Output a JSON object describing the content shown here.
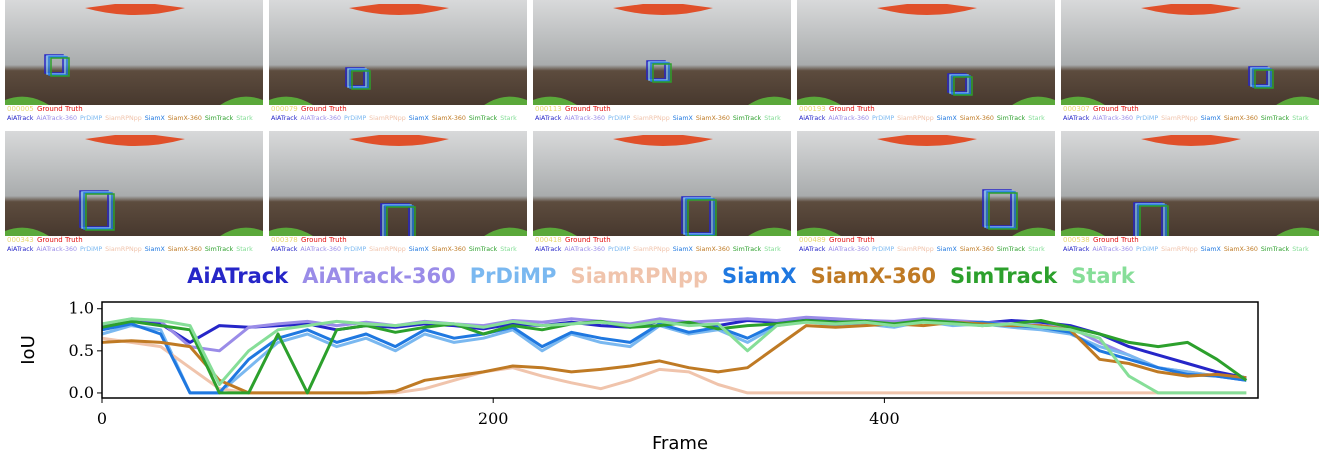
{
  "frames": [
    {
      "id": "000005"
    },
    {
      "id": "000079"
    },
    {
      "id": "000113"
    },
    {
      "id": "000193"
    },
    {
      "id": "000307"
    },
    {
      "id": "000343"
    },
    {
      "id": "000378"
    },
    {
      "id": "000418"
    },
    {
      "id": "000489"
    },
    {
      "id": "000538"
    }
  ],
  "ground_truth_label": "Ground Truth",
  "chart_data": {
    "type": "line",
    "x_label": "Frame",
    "y_label": "IoU",
    "x": [
      0,
      15,
      30,
      45,
      60,
      75,
      90,
      105,
      120,
      135,
      150,
      165,
      180,
      195,
      210,
      225,
      240,
      255,
      270,
      285,
      300,
      315,
      330,
      345,
      360,
      375,
      390,
      405,
      420,
      435,
      450,
      465,
      480,
      495,
      510,
      525,
      540,
      555,
      570,
      585
    ],
    "xlim": [
      0,
      591
    ],
    "ylim": [
      -0.06,
      1.08
    ],
    "xticks": [
      0,
      200,
      400
    ],
    "yticks": [
      {
        "value": 0,
        "label": "0.0"
      },
      {
        "value": 0.5,
        "label": "0.5"
      },
      {
        "value": 1,
        "label": "1.0"
      }
    ],
    "series": [
      {
        "name": "AiATrack",
        "color": "#2626c8",
        "values": [
          0.75,
          0.85,
          0.82,
          0.6,
          0.8,
          0.78,
          0.8,
          0.82,
          0.75,
          0.8,
          0.78,
          0.82,
          0.8,
          0.76,
          0.82,
          0.8,
          0.84,
          0.8,
          0.78,
          0.85,
          0.82,
          0.8,
          0.86,
          0.84,
          0.88,
          0.85,
          0.86,
          0.84,
          0.87,
          0.85,
          0.83,
          0.86,
          0.84,
          0.8,
          0.7,
          0.55,
          0.45,
          0.35,
          0.25,
          0.18
        ]
      },
      {
        "name": "AiATrack-360",
        "color": "#9a8ce8",
        "values": [
          0.8,
          0.88,
          0.85,
          0.55,
          0.5,
          0.78,
          0.82,
          0.85,
          0.8,
          0.84,
          0.8,
          0.85,
          0.82,
          0.8,
          0.86,
          0.84,
          0.88,
          0.85,
          0.82,
          0.88,
          0.84,
          0.86,
          0.88,
          0.86,
          0.9,
          0.88,
          0.86,
          0.85,
          0.88,
          0.86,
          0.84,
          0.82,
          0.8,
          0.78,
          0.6,
          0.45,
          0.3,
          0.25,
          0.2,
          0.15
        ]
      },
      {
        "name": "PrDiMP",
        "color": "#7ab8f0",
        "values": [
          0.7,
          0.8,
          0.75,
          0.0,
          0.0,
          0.3,
          0.6,
          0.7,
          0.55,
          0.65,
          0.5,
          0.7,
          0.6,
          0.65,
          0.75,
          0.5,
          0.7,
          0.6,
          0.55,
          0.8,
          0.7,
          0.75,
          0.6,
          0.8,
          0.85,
          0.8,
          0.82,
          0.78,
          0.85,
          0.8,
          0.82,
          0.78,
          0.75,
          0.7,
          0.55,
          0.45,
          0.3,
          0.25,
          0.2,
          0.15
        ]
      },
      {
        "name": "SiamRPNpp",
        "color": "#f0c4ac",
        "values": [
          0.65,
          0.6,
          0.55,
          0.3,
          0.05,
          0.0,
          0.0,
          0.0,
          0.0,
          0.0,
          0.0,
          0.05,
          0.15,
          0.25,
          0.3,
          0.2,
          0.12,
          0.05,
          0.15,
          0.28,
          0.25,
          0.1,
          0.0,
          0.0,
          0.0,
          0.0,
          0.0,
          0.0,
          0.0,
          0.0,
          0.0,
          0.0,
          0.0,
          0.0,
          0.0,
          0.0,
          0.0,
          0.0,
          0.0,
          0.0
        ]
      },
      {
        "name": "SiamX",
        "color": "#1f78e0",
        "values": [
          0.75,
          0.82,
          0.7,
          0.0,
          0.0,
          0.4,
          0.65,
          0.75,
          0.6,
          0.7,
          0.55,
          0.75,
          0.65,
          0.7,
          0.78,
          0.55,
          0.72,
          0.65,
          0.6,
          0.82,
          0.72,
          0.78,
          0.65,
          0.82,
          0.86,
          0.82,
          0.84,
          0.8,
          0.86,
          0.82,
          0.84,
          0.8,
          0.78,
          0.72,
          0.5,
          0.4,
          0.3,
          0.22,
          0.2,
          0.15
        ]
      },
      {
        "name": "SiamX-360",
        "color": "#bf7a24",
        "values": [
          0.6,
          0.62,
          0.6,
          0.55,
          0.15,
          0.0,
          0.0,
          0.0,
          0.0,
          0.0,
          0.02,
          0.15,
          0.2,
          0.25,
          0.32,
          0.3,
          0.25,
          0.28,
          0.32,
          0.38,
          0.3,
          0.25,
          0.3,
          0.55,
          0.8,
          0.78,
          0.8,
          0.82,
          0.8,
          0.84,
          0.82,
          0.8,
          0.8,
          0.75,
          0.4,
          0.35,
          0.25,
          0.2,
          0.22,
          0.18
        ]
      },
      {
        "name": "SimTrack",
        "color": "#2ca02c",
        "values": [
          0.78,
          0.85,
          0.8,
          0.75,
          0.0,
          0.0,
          0.7,
          0.0,
          0.75,
          0.8,
          0.72,
          0.78,
          0.82,
          0.7,
          0.8,
          0.75,
          0.82,
          0.85,
          0.78,
          0.8,
          0.84,
          0.76,
          0.8,
          0.82,
          0.86,
          0.84,
          0.85,
          0.82,
          0.86,
          0.84,
          0.8,
          0.82,
          0.86,
          0.78,
          0.7,
          0.6,
          0.55,
          0.6,
          0.4,
          0.15
        ]
      },
      {
        "name": "Stark",
        "color": "#86de98",
        "values": [
          0.82,
          0.88,
          0.86,
          0.8,
          0.1,
          0.5,
          0.75,
          0.8,
          0.85,
          0.82,
          0.8,
          0.84,
          0.82,
          0.78,
          0.85,
          0.8,
          0.82,
          0.84,
          0.8,
          0.85,
          0.8,
          0.82,
          0.5,
          0.8,
          0.84,
          0.82,
          0.84,
          0.8,
          0.84,
          0.82,
          0.8,
          0.82,
          0.78,
          0.75,
          0.65,
          0.2,
          0.0,
          0.0,
          0.0,
          0.0
        ]
      }
    ]
  }
}
